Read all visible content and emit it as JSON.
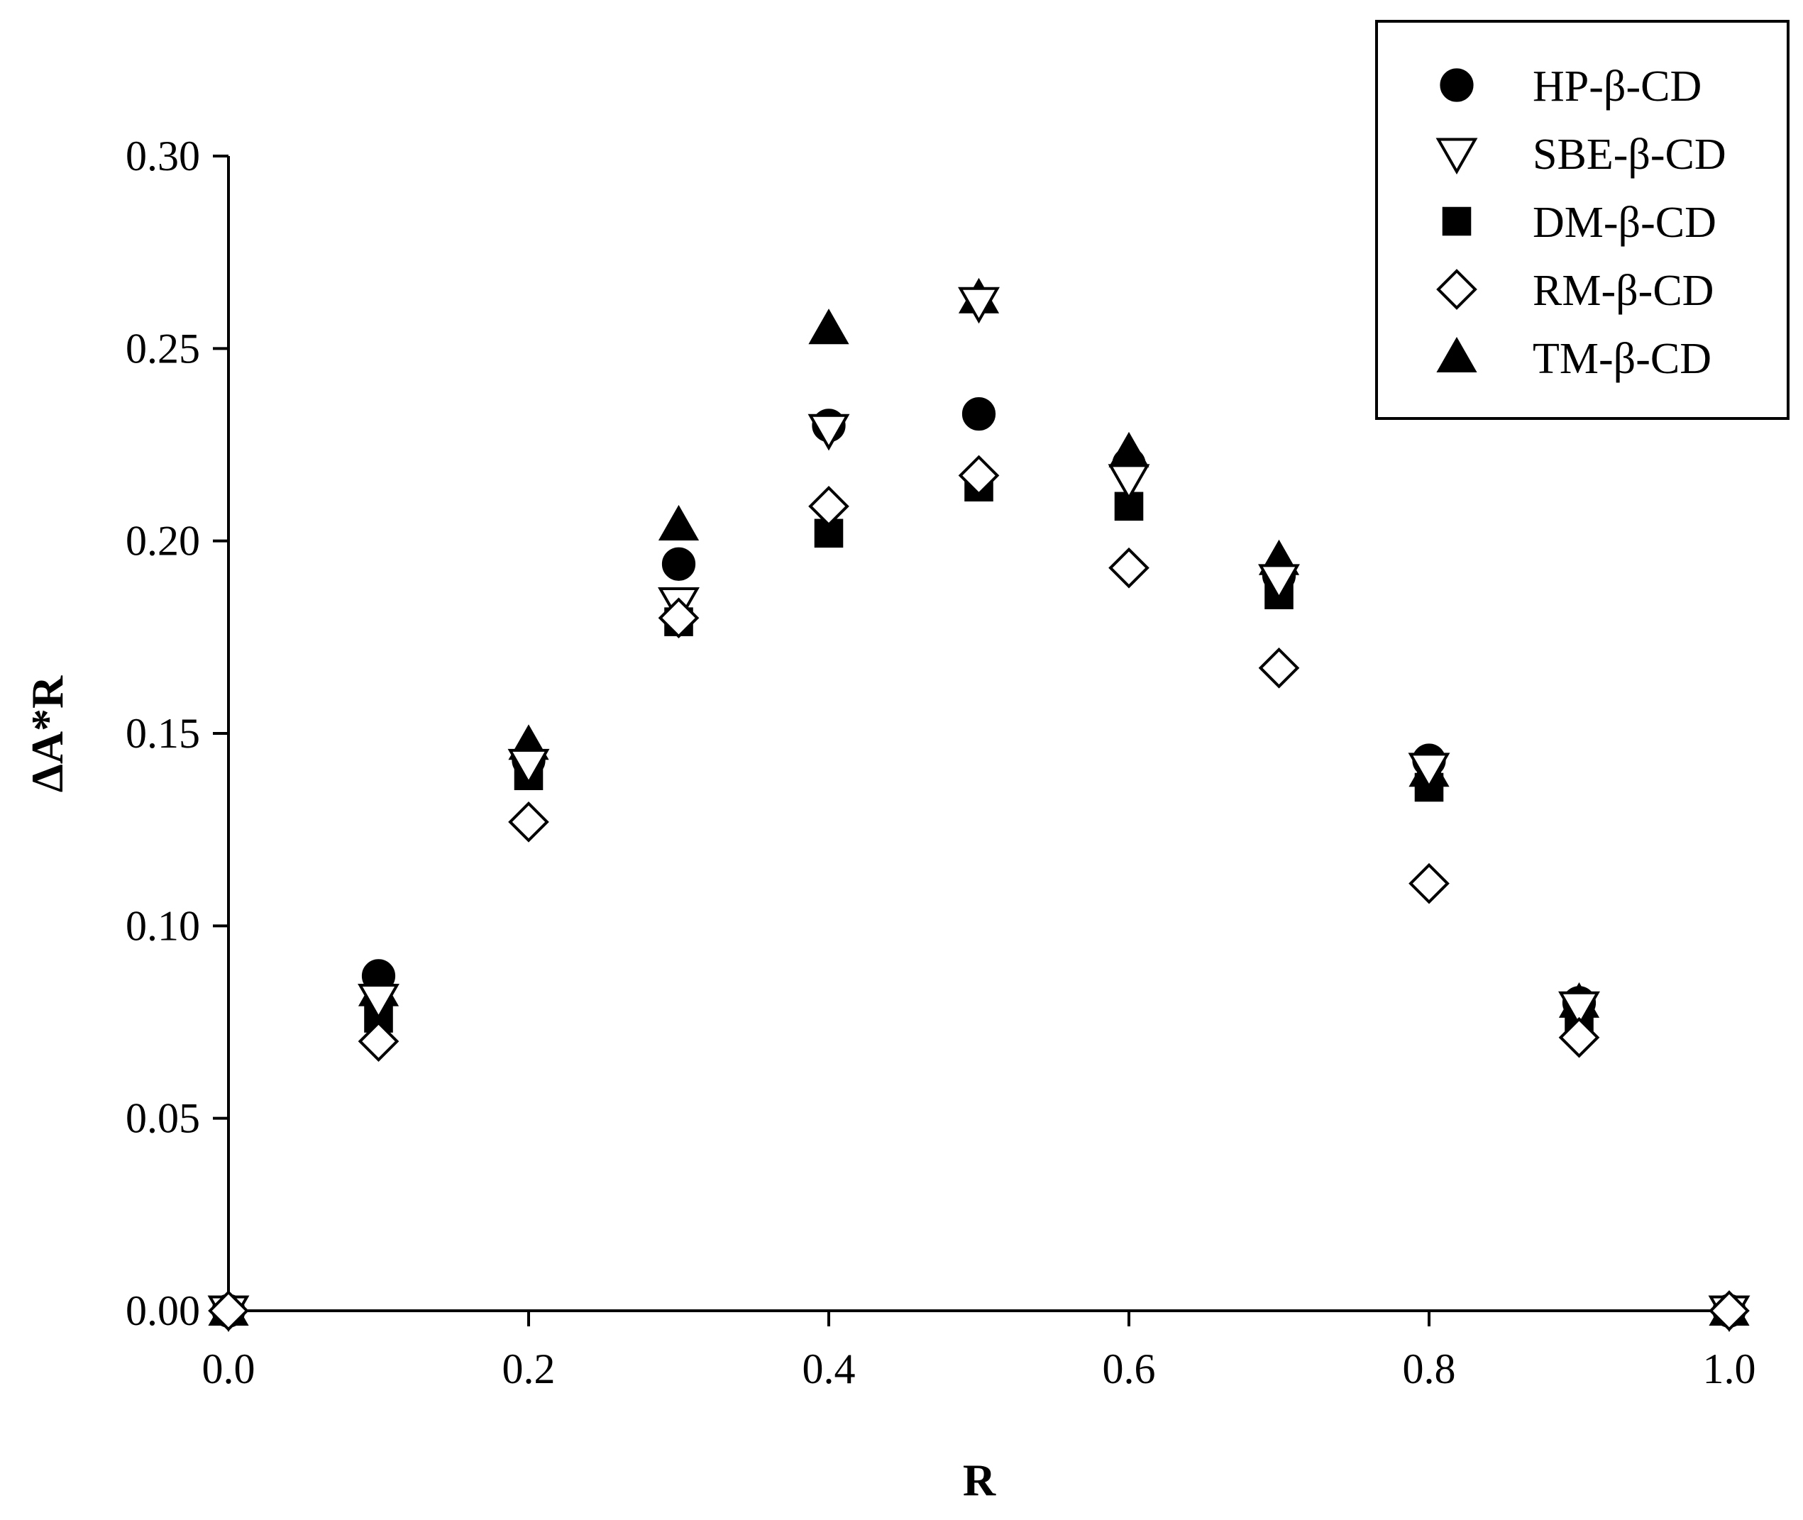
{
  "chart_data": {
    "type": "scatter",
    "title": "",
    "xlabel": "R",
    "ylabel": "ΔA*R",
    "xlim": [
      0.0,
      1.0
    ],
    "ylim": [
      0.0,
      0.3
    ],
    "x_ticks": [
      "0.0",
      "0.2",
      "0.4",
      "0.6",
      "0.8",
      "1.0"
    ],
    "y_ticks": [
      "0.00",
      "0.05",
      "0.10",
      "0.15",
      "0.20",
      "0.25",
      "0.30"
    ],
    "grid": false,
    "legend_position": "top-right",
    "series": [
      {
        "name": "HP-β-CD",
        "marker": "circle-filled",
        "x": [
          0.0,
          0.1,
          0.2,
          0.3,
          0.4,
          0.5,
          0.6,
          0.7,
          0.8,
          0.9,
          1.0
        ],
        "y": [
          0.0,
          0.087,
          0.143,
          0.194,
          0.23,
          0.233,
          0.22,
          0.191,
          0.143,
          0.08,
          0.0
        ]
      },
      {
        "name": "SBE-β-CD",
        "marker": "triangle-down-open",
        "x": [
          0.0,
          0.1,
          0.2,
          0.3,
          0.4,
          0.5,
          0.6,
          0.7,
          0.8,
          0.9,
          1.0
        ],
        "y": [
          0.0,
          0.081,
          0.142,
          0.184,
          0.229,
          0.262,
          0.216,
          0.19,
          0.141,
          0.079,
          0.0
        ]
      },
      {
        "name": "DM-β-CD",
        "marker": "square-filled",
        "x": [
          0.0,
          0.1,
          0.2,
          0.3,
          0.4,
          0.5,
          0.6,
          0.7,
          0.8,
          0.9,
          1.0
        ],
        "y": [
          0.0,
          0.076,
          0.139,
          0.179,
          0.202,
          0.214,
          0.209,
          0.186,
          0.136,
          0.076,
          0.0
        ]
      },
      {
        "name": "RM-β-CD",
        "marker": "diamond-open",
        "x": [
          0.0,
          0.1,
          0.2,
          0.3,
          0.4,
          0.5,
          0.6,
          0.7,
          0.8,
          0.9,
          1.0
        ],
        "y": [
          0.0,
          0.07,
          0.127,
          0.18,
          0.209,
          0.217,
          0.193,
          0.167,
          0.111,
          0.071,
          0.0
        ]
      },
      {
        "name": "TM-β-CD",
        "marker": "triangle-up-filled",
        "x": [
          0.0,
          0.1,
          0.2,
          0.3,
          0.4,
          0.5,
          0.6,
          0.7,
          0.8,
          0.9,
          1.0
        ],
        "y": [
          0.0,
          0.083,
          0.147,
          0.204,
          0.255,
          0.263,
          0.223,
          0.195,
          0.14,
          0.08,
          0.0
        ]
      }
    ]
  }
}
